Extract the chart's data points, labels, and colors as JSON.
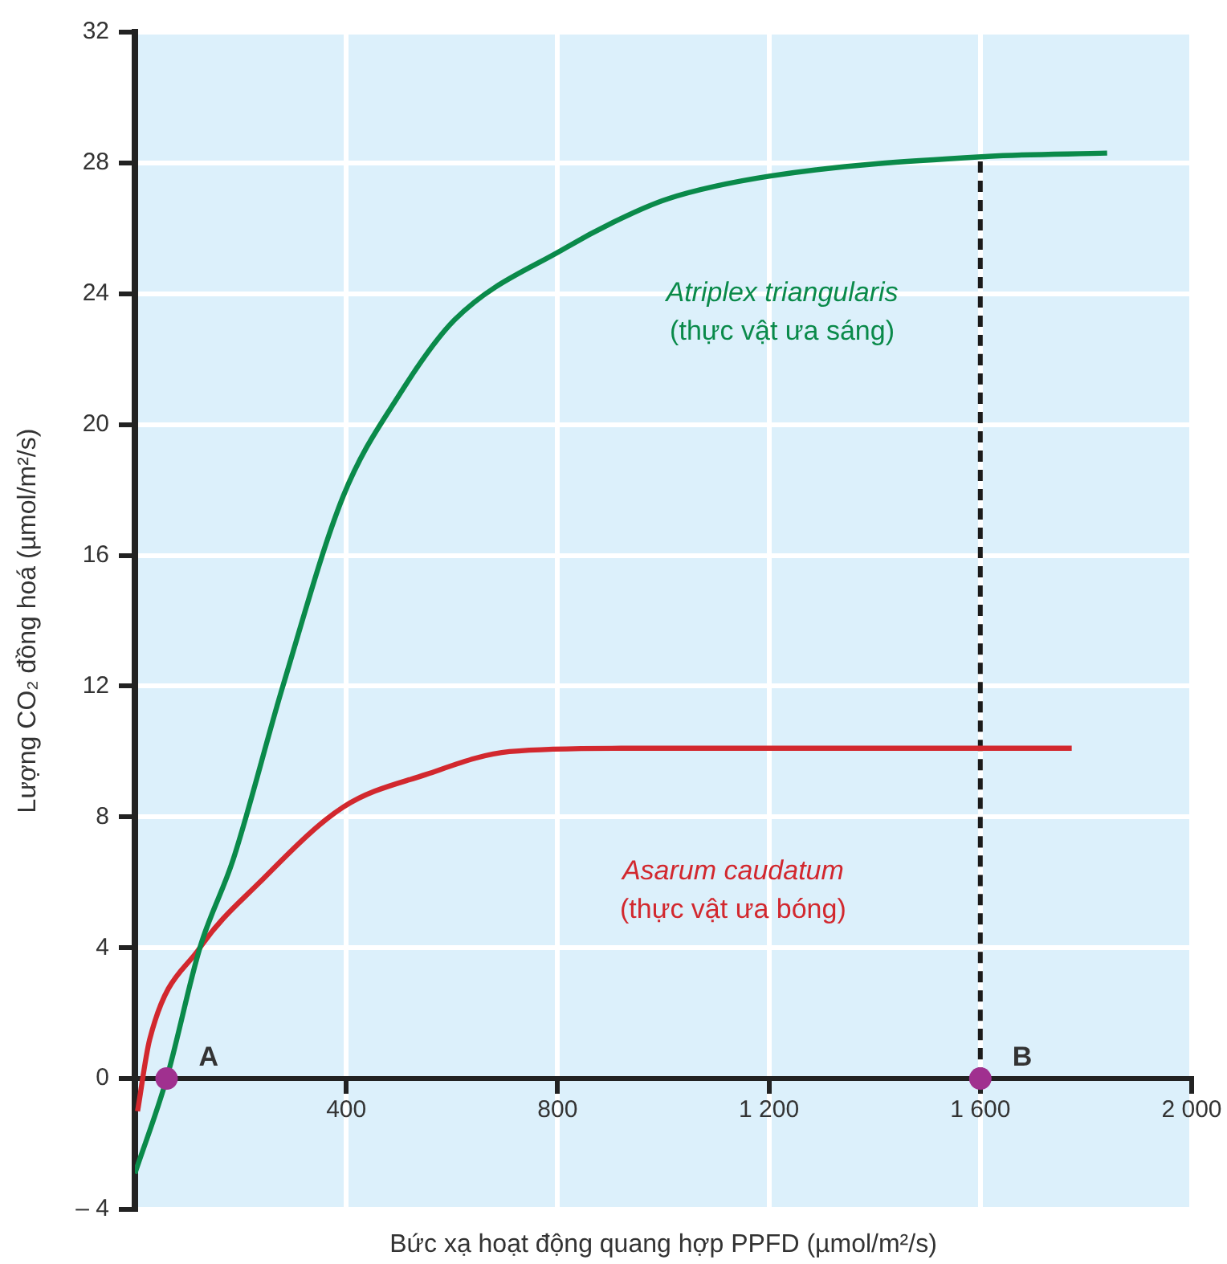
{
  "chart_data": {
    "type": "line",
    "xlabel": "Bức xạ hoạt động quang hợp PPFD (µmol/m²/s)",
    "ylabel": "Lượng CO₂ đồng hoá (µmol/m²/s)",
    "xlim": [
      0,
      2000
    ],
    "ylim": [
      -4,
      32
    ],
    "xticks": [
      400,
      800,
      {
        "value": 1200,
        "label": "1 200"
      },
      {
        "value": 1600,
        "label": "1 600"
      },
      {
        "value": 2000,
        "label": "2 000"
      }
    ],
    "yticks": [
      {
        "value": -4,
        "label": "– 4"
      },
      0,
      4,
      8,
      12,
      16,
      20,
      24,
      28,
      32
    ],
    "grid": true,
    "legend": false,
    "series": [
      {
        "name": "Atriplex triangularis\n(thực vật ưa sáng)",
        "type": "line",
        "marker": "none",
        "color": "#0a8a4a",
        "x": [
          0,
          60,
          123,
          186,
          280,
          394,
          500,
          605,
          815,
          920,
          1008,
          1203,
          1615,
          1840
        ],
        "values": [
          -2.9,
          0,
          4.0,
          6.7,
          12.0,
          17.8,
          20.9,
          23.2,
          25.4,
          26.3,
          26.9,
          27.6,
          28.2,
          28.3
        ]
      },
      {
        "name": "Asarum caudatum\n(thực vật ưa bóng)",
        "type": "line",
        "marker": "none",
        "color": "#d2282e",
        "x": [
          5,
          28,
          123,
          236,
          394,
          551,
          709,
          920,
          1773
        ],
        "values": [
          -1.0,
          1.2,
          4.0,
          6.0,
          8.3,
          9.3,
          10.0,
          10.1,
          10.1
        ]
      },
      {
        "type": "line",
        "marker": "none",
        "line_style": "dashed",
        "color": "#1a1a1a",
        "x": [
          1600,
          1600
        ],
        "values": [
          0,
          28.2
        ]
      },
      {
        "type": "scatter",
        "marker": "circle",
        "color": "#a0308f",
        "x": [
          60,
          1600
        ],
        "values": [
          0,
          0
        ]
      }
    ],
    "annotations": [
      {
        "text": "A",
        "x": 60,
        "y": 0
      },
      {
        "text": "B",
        "x": 1600,
        "y": 0
      }
    ]
  }
}
